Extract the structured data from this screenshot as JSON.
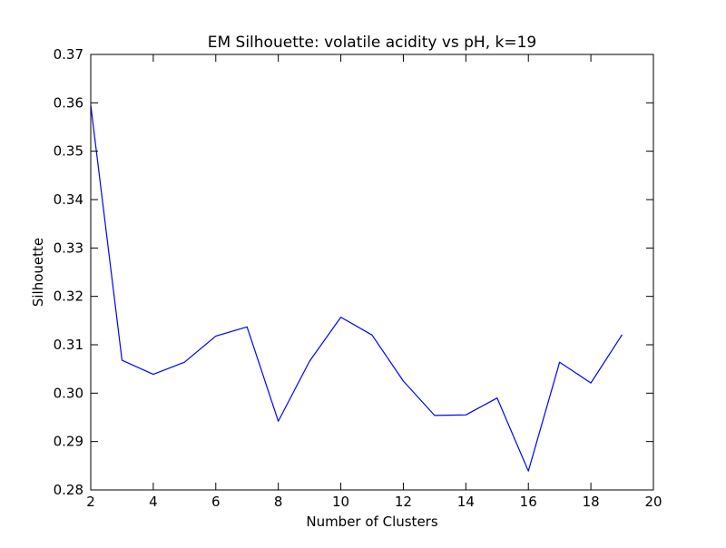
{
  "chart_data": {
    "type": "line",
    "title": "EM Silhouette: volatile acidity vs pH, k=19",
    "xlabel": "Number of Clusters",
    "ylabel": "Silhouette",
    "xlim": [
      2,
      20
    ],
    "ylim": [
      0.28,
      0.37
    ],
    "x_ticks": [
      2,
      4,
      6,
      8,
      10,
      12,
      14,
      16,
      18,
      20
    ],
    "y_ticks": [
      0.28,
      0.29,
      0.3,
      0.31,
      0.32,
      0.33,
      0.34,
      0.35,
      0.36,
      0.37
    ],
    "x_tick_labels": [
      "2",
      "4",
      "6",
      "8",
      "10",
      "12",
      "14",
      "16",
      "18",
      "20"
    ],
    "y_tick_labels": [
      "0.28",
      "0.29",
      "0.30",
      "0.31",
      "0.32",
      "0.33",
      "0.34",
      "0.35",
      "0.36",
      "0.37"
    ],
    "grid": false,
    "series": [
      {
        "color": "#0000ff",
        "x": [
          2,
          3,
          4,
          5,
          6,
          7,
          8,
          9,
          10,
          11,
          12,
          13,
          14,
          15,
          16,
          17,
          18,
          19
        ],
        "y": [
          0.3595,
          0.3068,
          0.3039,
          0.3064,
          0.3118,
          0.3137,
          0.2942,
          0.3066,
          0.3157,
          0.312,
          0.3025,
          0.2954,
          0.2955,
          0.299,
          0.2839,
          0.3064,
          0.3021,
          0.3121
        ]
      }
    ]
  }
}
